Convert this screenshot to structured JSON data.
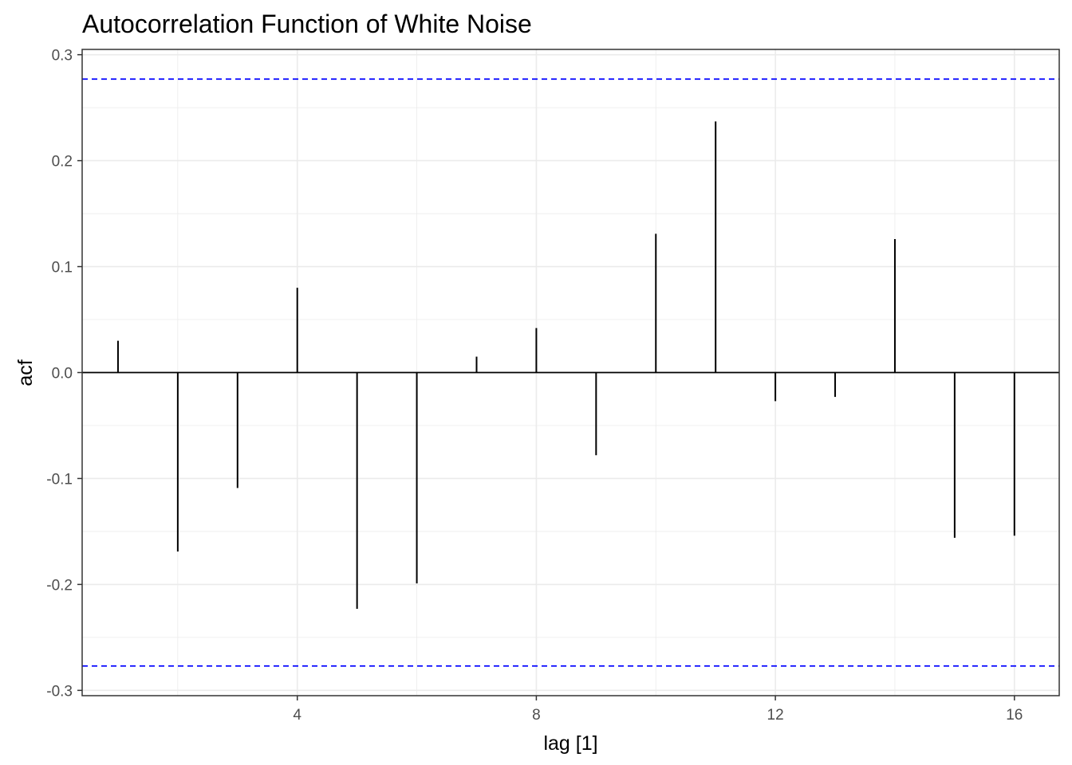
{
  "chart_data": {
    "type": "bar",
    "title": "Autocorrelation Function of White Noise",
    "xlabel": "lag [1]",
    "ylabel": "acf",
    "x": [
      1,
      2,
      3,
      4,
      5,
      6,
      7,
      8,
      9,
      10,
      11,
      12,
      13,
      14,
      15,
      16
    ],
    "values": [
      0.03,
      -0.169,
      -0.109,
      0.08,
      -0.223,
      -0.199,
      0.015,
      0.042,
      -0.078,
      0.131,
      0.237,
      -0.027,
      -0.023,
      0.126,
      -0.156,
      -0.154
    ],
    "confidence_bounds": [
      0.277,
      -0.277
    ],
    "xlim": [
      0.4,
      16.75
    ],
    "ylim": [
      -0.305,
      0.305
    ],
    "x_ticks": [
      4,
      8,
      12,
      16
    ],
    "x_tick_labels": [
      "4",
      "8",
      "12",
      "16"
    ],
    "y_ticks": [
      -0.3,
      -0.2,
      -0.1,
      0.0,
      0.1,
      0.2,
      0.3
    ],
    "y_tick_labels": [
      "-0.3",
      "-0.2",
      "-0.1",
      "0.0",
      "0.1",
      "0.2",
      "0.3"
    ],
    "grid": true,
    "colors": {
      "bars": "#000000",
      "bounds": "#0000ff",
      "grid": "#ebebeb",
      "panel_border": "#333333"
    }
  }
}
